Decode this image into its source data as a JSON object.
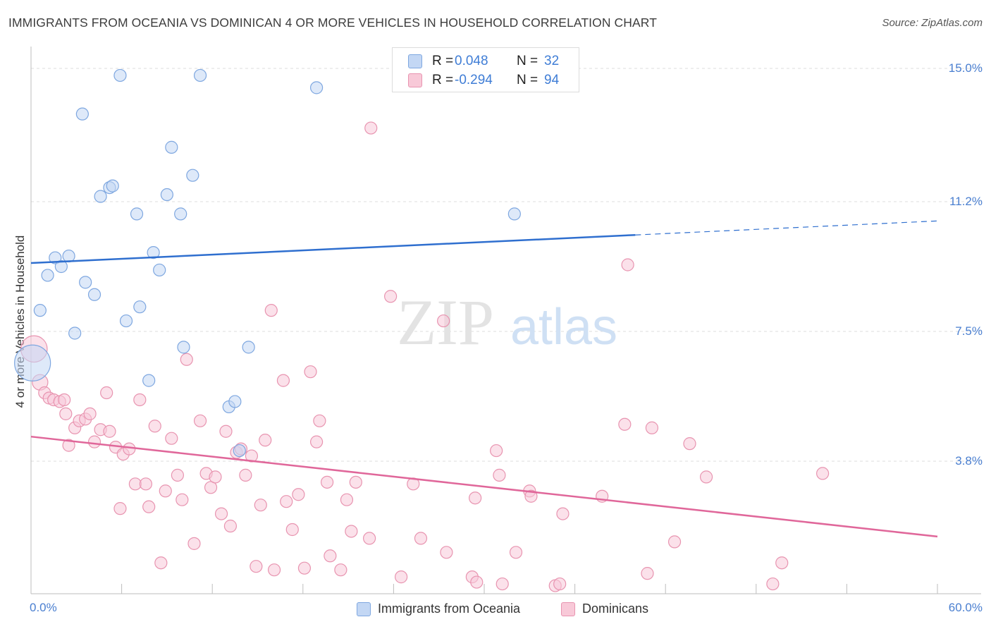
{
  "title": "IMMIGRANTS FROM OCEANIA VS DOMINICAN 4 OR MORE VEHICLES IN HOUSEHOLD CORRELATION CHART",
  "source": "Source: ZipAtlas.com",
  "watermark": {
    "zip": "ZIP",
    "atlas": "atlas"
  },
  "colors": {
    "oceania_fill": "#c3d7f4",
    "oceania_stroke": "#7ea7e0",
    "oceania_line": "#2f6fcf",
    "dominican_fill": "#f8c9d8",
    "dominican_stroke": "#e894b0",
    "dominican_line": "#e0679a",
    "grid": "#dcdcdc",
    "tick_text": "#4a7fd0"
  },
  "legend": {
    "rows": [
      {
        "r_label": "R =",
        "r_value": "0.048",
        "n_label": "N =",
        "n_value": "32"
      },
      {
        "r_label": "R =",
        "r_value": "-0.294",
        "n_label": "N =",
        "n_value": "94"
      }
    ]
  },
  "bottom_legend": [
    "Immigrants from Oceania",
    "Dominicans"
  ],
  "chart_data": {
    "type": "scatter",
    "title": "IMMIGRANTS FROM OCEANIA VS DOMINICAN 4 OR MORE VEHICLES IN HOUSEHOLD CORRELATION CHART",
    "xlabel": "",
    "ylabel": "4 or more Vehicles in Household",
    "xlim": [
      0,
      60
    ],
    "ylim": [
      0,
      15.7
    ],
    "x_tick_labels": [
      "0.0%",
      "60.0%"
    ],
    "y_ticks": [
      3.8,
      7.5,
      11.2,
      15.0
    ],
    "y_tick_labels": [
      "3.8%",
      "7.5%",
      "11.2%",
      "15.0%"
    ],
    "grid": "horizontal dashed",
    "legend_position": "top-center",
    "series": [
      {
        "name": "Immigrants from Oceania",
        "r": 0.048,
        "n": 32,
        "trend": {
          "x0": 0,
          "y0": 9.45,
          "x1": 40,
          "y1": 10.25,
          "dash_to_x": 60,
          "dash_y": 10.65
        },
        "points": [
          [
            0.1,
            6.6,
            3.0
          ],
          [
            0.6,
            8.1,
            1.0
          ],
          [
            1.1,
            9.1,
            1.0
          ],
          [
            1.6,
            9.6,
            1.0
          ],
          [
            2.0,
            9.35,
            1.0
          ],
          [
            2.5,
            9.65,
            1.0
          ],
          [
            2.9,
            7.45,
            1.0
          ],
          [
            3.4,
            13.7,
            1.0
          ],
          [
            3.6,
            8.9,
            1.0
          ],
          [
            4.2,
            8.55,
            1.0
          ],
          [
            4.6,
            11.35,
            1.0
          ],
          [
            5.2,
            11.6,
            1.0
          ],
          [
            5.4,
            11.65,
            1.0
          ],
          [
            5.9,
            14.8,
            1.0
          ],
          [
            6.3,
            7.8,
            1.0
          ],
          [
            7.0,
            10.85,
            1.0
          ],
          [
            7.2,
            8.2,
            1.0
          ],
          [
            7.8,
            6.1,
            1.0
          ],
          [
            8.1,
            9.75,
            1.0
          ],
          [
            8.5,
            9.25,
            1.0
          ],
          [
            9.0,
            11.4,
            1.0
          ],
          [
            9.3,
            12.75,
            1.0
          ],
          [
            9.9,
            10.85,
            1.0
          ],
          [
            10.1,
            7.05,
            1.0
          ],
          [
            10.7,
            11.95,
            1.0
          ],
          [
            11.2,
            14.8,
            1.0
          ],
          [
            13.1,
            5.35,
            1.0
          ],
          [
            13.5,
            5.5,
            1.0
          ],
          [
            13.8,
            4.1,
            1.0
          ],
          [
            14.4,
            7.05,
            1.0
          ],
          [
            18.9,
            14.45,
            1.0
          ],
          [
            32.0,
            10.85,
            1.0
          ]
        ]
      },
      {
        "name": "Dominicans",
        "r": -0.294,
        "n": 94,
        "trend": {
          "x0": 0,
          "y0": 4.5,
          "x1": 60,
          "y1": 1.65
        },
        "points": [
          [
            0.2,
            7.0,
            2.2
          ],
          [
            0.6,
            6.05,
            1.3
          ],
          [
            0.9,
            5.75,
            1.0
          ],
          [
            1.2,
            5.6,
            1.0
          ],
          [
            1.5,
            5.55,
            1.0
          ],
          [
            1.9,
            5.5,
            1.0
          ],
          [
            2.2,
            5.55,
            1.0
          ],
          [
            2.3,
            5.15,
            1.0
          ],
          [
            2.5,
            4.25,
            1.0
          ],
          [
            2.9,
            4.75,
            1.0
          ],
          [
            3.2,
            4.95,
            1.0
          ],
          [
            3.6,
            5.0,
            1.0
          ],
          [
            3.9,
            5.15,
            1.0
          ],
          [
            4.2,
            4.35,
            1.0
          ],
          [
            4.6,
            4.7,
            1.0
          ],
          [
            5.0,
            5.75,
            1.0
          ],
          [
            5.2,
            4.65,
            1.0
          ],
          [
            5.6,
            4.2,
            1.0
          ],
          [
            5.9,
            2.45,
            1.0
          ],
          [
            6.1,
            4.0,
            1.0
          ],
          [
            6.5,
            4.15,
            1.0
          ],
          [
            6.9,
            3.15,
            1.0
          ],
          [
            7.2,
            5.55,
            1.0
          ],
          [
            7.6,
            3.15,
            1.0
          ],
          [
            7.8,
            2.5,
            1.0
          ],
          [
            8.2,
            4.8,
            1.0
          ],
          [
            8.6,
            0.9,
            1.0
          ],
          [
            8.9,
            2.95,
            1.0
          ],
          [
            9.3,
            4.45,
            1.0
          ],
          [
            9.7,
            3.4,
            1.0
          ],
          [
            10.0,
            2.7,
            1.0
          ],
          [
            10.3,
            6.7,
            1.0
          ],
          [
            10.8,
            1.45,
            1.0
          ],
          [
            11.2,
            4.95,
            1.0
          ],
          [
            11.6,
            3.45,
            1.0
          ],
          [
            11.9,
            3.05,
            1.0
          ],
          [
            12.2,
            3.35,
            1.0
          ],
          [
            12.6,
            2.3,
            1.0
          ],
          [
            12.9,
            4.65,
            1.0
          ],
          [
            13.2,
            1.95,
            1.0
          ],
          [
            13.6,
            4.05,
            1.0
          ],
          [
            13.9,
            4.15,
            1.0
          ],
          [
            14.2,
            3.4,
            1.0
          ],
          [
            14.6,
            3.95,
            1.0
          ],
          [
            14.9,
            0.8,
            1.0
          ],
          [
            15.2,
            2.55,
            1.0
          ],
          [
            15.5,
            4.4,
            1.0
          ],
          [
            15.9,
            8.1,
            1.0
          ],
          [
            16.1,
            0.7,
            1.0
          ],
          [
            16.7,
            6.1,
            1.0
          ],
          [
            16.9,
            2.65,
            1.0
          ],
          [
            17.3,
            1.85,
            1.0
          ],
          [
            17.7,
            2.85,
            1.0
          ],
          [
            18.1,
            0.75,
            1.0
          ],
          [
            18.5,
            6.35,
            1.0
          ],
          [
            18.9,
            4.35,
            1.0
          ],
          [
            19.1,
            4.95,
            1.0
          ],
          [
            19.6,
            3.2,
            1.0
          ],
          [
            19.8,
            1.1,
            1.0
          ],
          [
            20.5,
            0.7,
            1.0
          ],
          [
            20.9,
            2.7,
            1.0
          ],
          [
            21.2,
            1.8,
            1.0
          ],
          [
            21.5,
            3.2,
            1.0
          ],
          [
            22.4,
            1.6,
            1.0
          ],
          [
            23.8,
            8.5,
            1.0
          ],
          [
            24.5,
            0.5,
            1.0
          ],
          [
            25.3,
            3.15,
            1.0
          ],
          [
            25.8,
            1.6,
            1.0
          ],
          [
            22.5,
            13.3,
            1.0
          ],
          [
            27.3,
            7.8,
            1.0
          ],
          [
            27.5,
            1.2,
            1.0
          ],
          [
            29.2,
            0.5,
            1.0
          ],
          [
            29.4,
            2.75,
            1.0
          ],
          [
            29.5,
            0.35,
            1.0
          ],
          [
            30.8,
            4.1,
            1.0
          ],
          [
            31.0,
            3.4,
            1.0
          ],
          [
            32.1,
            1.2,
            1.0
          ],
          [
            31.2,
            0.3,
            1.0
          ],
          [
            33.0,
            2.95,
            1.0
          ],
          [
            33.1,
            2.8,
            1.0
          ],
          [
            34.7,
            0.25,
            1.0
          ],
          [
            35.0,
            0.3,
            1.0
          ],
          [
            35.2,
            2.3,
            1.0
          ],
          [
            37.8,
            2.8,
            1.0
          ],
          [
            39.3,
            4.85,
            1.0
          ],
          [
            39.5,
            9.4,
            1.0
          ],
          [
            40.8,
            0.6,
            1.0
          ],
          [
            41.1,
            4.75,
            1.0
          ],
          [
            42.6,
            1.5,
            1.0
          ],
          [
            43.6,
            4.3,
            1.0
          ],
          [
            44.7,
            3.35,
            1.0
          ],
          [
            49.7,
            0.9,
            1.0
          ],
          [
            49.1,
            0.3,
            1.0
          ],
          [
            52.4,
            3.45,
            1.0
          ]
        ]
      }
    ]
  }
}
